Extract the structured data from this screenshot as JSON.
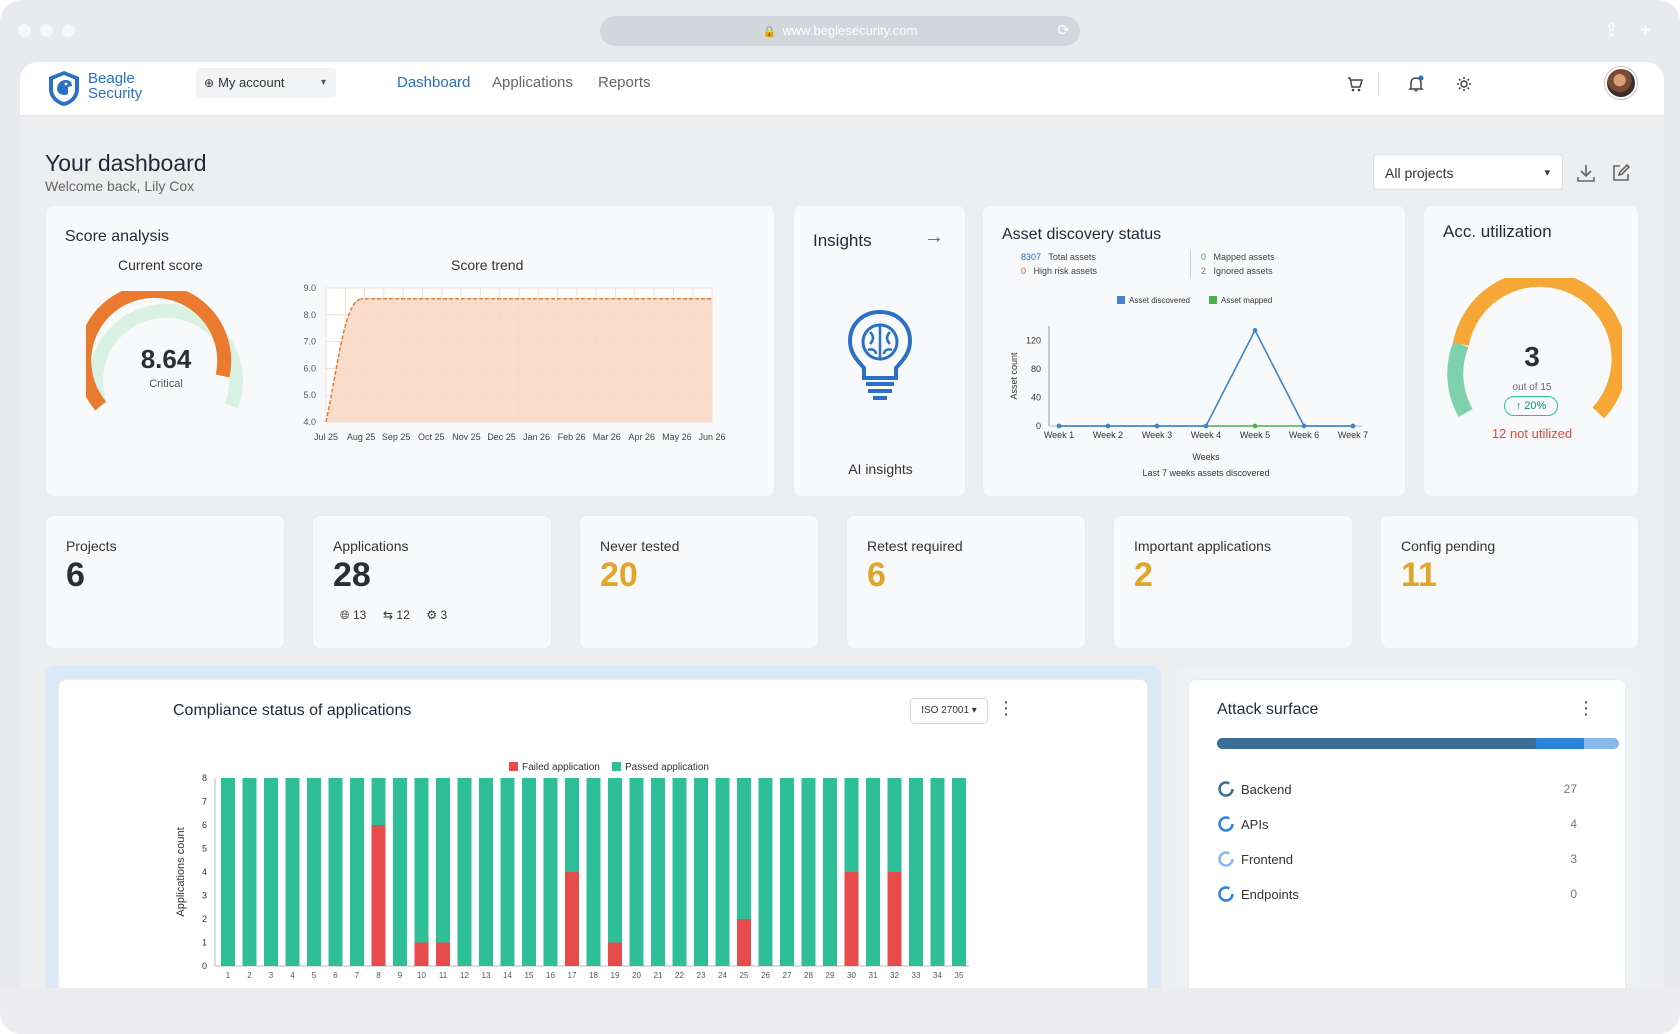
{
  "browser": {
    "url": "www.beglesecurity.com"
  },
  "brand": {
    "name_line1": "Beagle",
    "name_line2": "Security"
  },
  "nav": {
    "account_label": "My account",
    "links": [
      "Dashboard",
      "Applications",
      "Reports"
    ],
    "active": "Dashboard"
  },
  "header": {
    "title": "Your dashboard",
    "welcome": "Welcome back, Lily Cox",
    "project_filter": "All projects"
  },
  "score": {
    "title": "Score analysis",
    "current_label": "Current score",
    "value": "8.64",
    "rating": "Critical",
    "trend_label": "Score trend"
  },
  "insights": {
    "title": "Insights",
    "caption": "AI insights"
  },
  "asset_discovery": {
    "title": "Asset discovery status",
    "total_assets": "8307",
    "total_label": "Total assets",
    "high_risk": "0",
    "high_risk_label": "High risk assets",
    "mapped": "0",
    "mapped_label": "Mapped assets",
    "ignored": "2",
    "ignored_label": "Ignored assets"
  },
  "utilization": {
    "title": "Acc. utilization",
    "value": "3",
    "out_of": "out of 15",
    "change": "20%",
    "not_utilized": "12 not utilized"
  },
  "stats": [
    {
      "label": "Projects",
      "value": "6"
    },
    {
      "label": "Applications",
      "value": "28"
    },
    {
      "label": "Never tested",
      "value": "20"
    },
    {
      "label": "Retest required",
      "value": "6"
    },
    {
      "label": "Important applications",
      "value": "2"
    },
    {
      "label": "Config pending",
      "value": "11"
    }
  ],
  "app_breakdown": {
    "web": "13",
    "api": "12",
    "network": "3"
  },
  "compliance": {
    "title": "Compliance status of applications",
    "standard": "ISO 27001"
  },
  "attack_surface": {
    "title": "Attack surface",
    "items": [
      {
        "name": "Backend",
        "count": "27"
      },
      {
        "name": "APIs",
        "count": "4"
      },
      {
        "name": "Frontend",
        "count": "3"
      },
      {
        "name": "Endpoints",
        "count": "0"
      }
    ]
  },
  "colors": {
    "primary": "#2a6fc0",
    "gauge_orange": "#ea7a2f",
    "gauge_green": "#cfeedd",
    "gold": "#e2a52a",
    "failed": "#e84b4b",
    "passed": "#2fbf98",
    "line_blue": "#3f84d0",
    "line_green": "#4caf50"
  },
  "chart_data": [
    {
      "type": "area",
      "title": "Score trend",
      "x": [
        "Jul 25",
        "Aug 25",
        "Sep 25",
        "Oct 25",
        "Nov 25",
        "Dec 25",
        "Jan 26",
        "Feb 26",
        "Mar 26",
        "Apr 26",
        "May 26",
        "Jun 26"
      ],
      "series": [
        {
          "values": [
            4.0,
            8.6,
            8.6,
            8.6,
            8.6,
            8.6,
            8.6,
            8.6,
            8.6,
            8.6,
            8.6,
            8.6
          ]
        }
      ],
      "yticks": [
        "4.0",
        "5.0",
        "6.0",
        "7.0",
        "8.0",
        "9.0"
      ],
      "ylim": [
        4.0,
        9.0
      ],
      "grid": true
    },
    {
      "type": "line",
      "title": "Last 7 weeks assets discovered",
      "x": [
        "Week 1",
        "Week 2",
        "Week 3",
        "Week 4",
        "Week 5",
        "Week 6",
        "Week 7"
      ],
      "series": [
        {
          "name": "Asset discovered",
          "values": [
            0,
            0,
            0,
            0,
            134,
            0,
            0
          ]
        },
        {
          "name": "Asset mapped",
          "values": [
            0,
            0,
            0,
            0,
            0,
            0,
            0
          ]
        }
      ],
      "xlabel": "Weeks",
      "ylabel": "Asset count",
      "yticks": [
        "0",
        "40",
        "80",
        "120"
      ],
      "ylim": [
        0,
        140
      ],
      "legend": "top"
    },
    {
      "type": "bar",
      "title": "Compliance status of applications",
      "categories": [
        "1",
        "2",
        "3",
        "4",
        "5",
        "6",
        "7",
        "8",
        "9",
        "10",
        "11",
        "12",
        "13",
        "14",
        "15",
        "16",
        "17",
        "18",
        "19",
        "20",
        "21",
        "22",
        "23",
        "24",
        "25",
        "26",
        "27",
        "28",
        "29",
        "30",
        "31",
        "32",
        "33",
        "34",
        "35"
      ],
      "series": [
        {
          "name": "Failed application",
          "values": [
            0,
            0,
            0,
            0,
            0,
            0,
            0,
            6,
            0,
            1,
            1,
            0,
            0,
            0,
            0,
            0,
            4,
            0,
            1,
            0,
            0,
            0,
            0,
            0,
            2,
            0,
            0,
            0,
            0,
            4,
            0,
            4,
            0,
            0,
            0
          ]
        },
        {
          "name": "Passed application",
          "values": [
            8,
            8,
            8,
            8,
            8,
            8,
            8,
            2,
            8,
            7,
            7,
            8,
            8,
            8,
            8,
            8,
            4,
            8,
            7,
            8,
            8,
            8,
            8,
            8,
            6,
            8,
            8,
            8,
            8,
            4,
            8,
            4,
            8,
            8,
            8
          ]
        }
      ],
      "ylabel": "Applications count",
      "yticks": [
        "0",
        "1",
        "2",
        "3",
        "4",
        "5",
        "6",
        "7",
        "8"
      ],
      "ylim": [
        0,
        8
      ],
      "stacked": true,
      "legend": "top"
    }
  ]
}
